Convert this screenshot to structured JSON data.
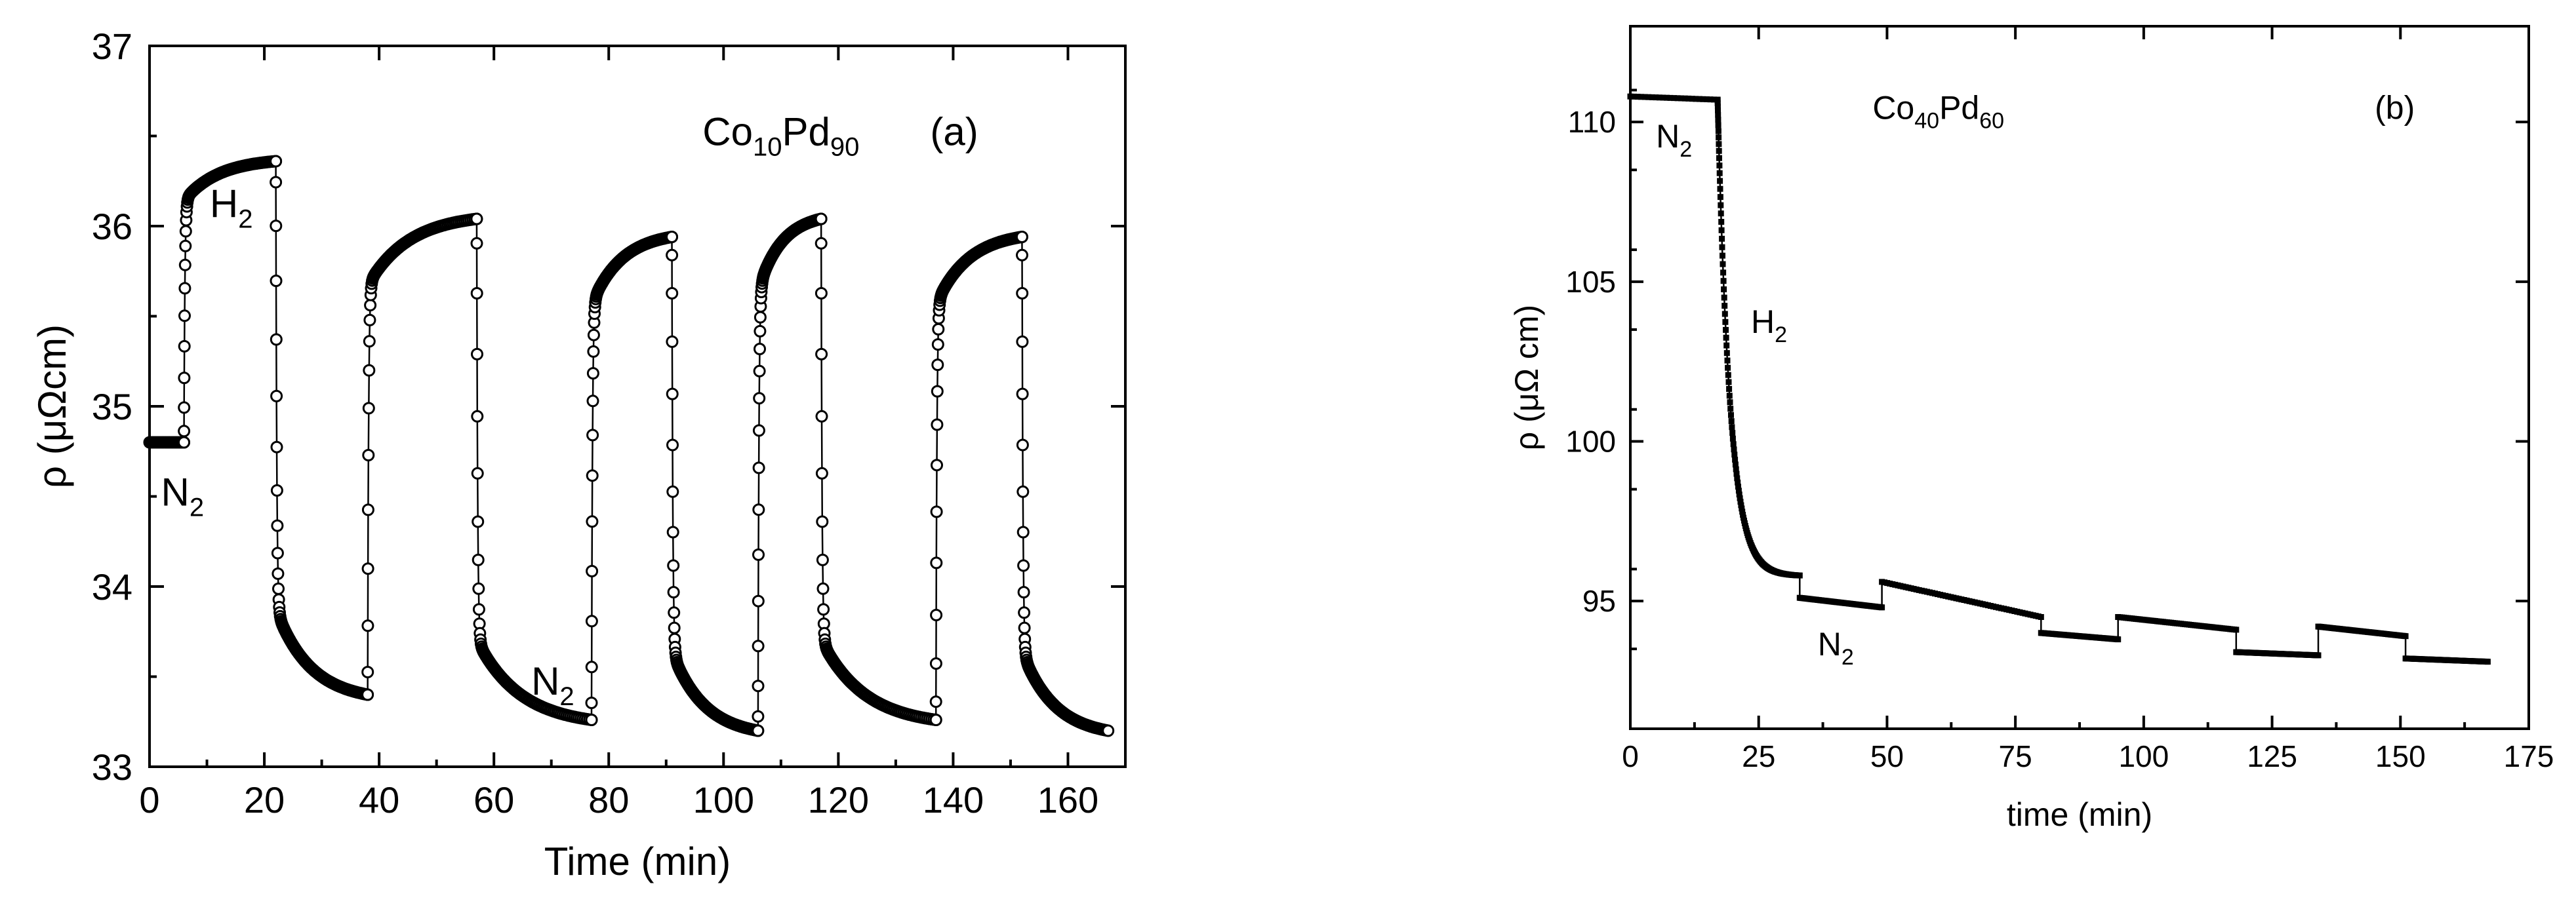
{
  "chart_data": [
    {
      "panel": "a",
      "type": "line",
      "marker": "open-circle",
      "xlabel": "Time (min)",
      "ylabel": "ρ (μΩcm)",
      "xlim": [
        0,
        170
      ],
      "ylim": [
        33,
        37
      ],
      "xticks": [
        "0",
        "20",
        "40",
        "60",
        "80",
        "100",
        "120",
        "140",
        "160"
      ],
      "yticks": [
        "33",
        "34",
        "35",
        "36",
        "37"
      ],
      "panel_label": "(a)",
      "sample": {
        "base": "Co",
        "sub1": "10",
        "mid": "Pd",
        "sub2": "90"
      },
      "annotations": [
        {
          "text": "N",
          "sub": "2",
          "x": 2,
          "y": 34.45
        },
        {
          "text": "H",
          "sub": "2",
          "x": 10.5,
          "y": 36.05
        },
        {
          "text": "N",
          "sub": "2",
          "x": 66.5,
          "y": 33.4
        }
      ],
      "series": [
        {
          "name": "Co10Pd90",
          "segments": [
            {
              "gas": "N2",
              "t0": 0,
              "t1": 6,
              "v0": 34.8,
              "vend": 34.8,
              "mode": "flat"
            },
            {
              "gas": "H2",
              "t0": 6,
              "t1": 22,
              "v0": 34.8,
              "vend": 36.36,
              "mode": "rise"
            },
            {
              "gas": "N2",
              "t0": 22,
              "t1": 38,
              "v0": 36.36,
              "vend": 33.4,
              "mode": "fall"
            },
            {
              "gas": "H2",
              "t0": 38,
              "t1": 57,
              "v0": 33.4,
              "vend": 36.04,
              "mode": "rise"
            },
            {
              "gas": "N2",
              "t0": 57,
              "t1": 77,
              "v0": 36.04,
              "vend": 33.26,
              "mode": "fall"
            },
            {
              "gas": "H2",
              "t0": 77,
              "t1": 91,
              "v0": 33.26,
              "vend": 35.94,
              "mode": "rise"
            },
            {
              "gas": "N2",
              "t0": 91,
              "t1": 106,
              "v0": 35.94,
              "vend": 33.2,
              "mode": "fall"
            },
            {
              "gas": "H2",
              "t0": 106,
              "t1": 117,
              "v0": 33.2,
              "vend": 36.04,
              "mode": "rise"
            },
            {
              "gas": "N2",
              "t0": 117,
              "t1": 137,
              "v0": 36.04,
              "vend": 33.26,
              "mode": "fall"
            },
            {
              "gas": "H2",
              "t0": 137,
              "t1": 152,
              "v0": 33.26,
              "vend": 35.94,
              "mode": "rise"
            },
            {
              "gas": "N2",
              "t0": 152,
              "t1": 167,
              "v0": 35.94,
              "vend": 33.2,
              "mode": "fall"
            }
          ]
        }
      ]
    },
    {
      "panel": "b",
      "type": "line",
      "marker": "filled-square",
      "xlabel": "time (min)",
      "ylabel": "ρ (μΩ cm)",
      "xlim": [
        0,
        175
      ],
      "ylim": [
        91,
        113
      ],
      "xticks": [
        "0",
        "25",
        "50",
        "75",
        "100",
        "125",
        "150",
        "175"
      ],
      "yticks": [
        "95",
        "100",
        "105",
        "110"
      ],
      "panel_label": "(b)",
      "sample": {
        "base": "Co",
        "sub1": "40",
        "mid": "Pd",
        "sub2": "60"
      },
      "annotations": [
        {
          "text": "N",
          "sub": "2",
          "x": 5,
          "y": 109.2
        },
        {
          "text": "H",
          "sub": "2",
          "x": 23.5,
          "y": 103.4
        },
        {
          "text": "N",
          "sub": "2",
          "x": 36.5,
          "y": 93.3
        }
      ],
      "series": [
        {
          "name": "Co40Pd60",
          "segments": [
            {
              "gas": "N2",
              "t0": 0,
              "t1": 17,
              "v0": 110.8,
              "vend": 110.7,
              "mode": "flat"
            },
            {
              "gas": "H2",
              "t0": 17,
              "t1": 33,
              "v0": 110.7,
              "vend": 95.8,
              "mode": "drop"
            },
            {
              "gas": "N2",
              "t0": 33,
              "t1": 49,
              "v0": 95.1,
              "vend": 94.8,
              "mode": "linear"
            },
            {
              "gas": "H2",
              "t0": 49,
              "t1": 80,
              "v0": 95.6,
              "vend": 94.5,
              "mode": "linear"
            },
            {
              "gas": "N2",
              "t0": 80,
              "t1": 95,
              "v0": 94.0,
              "vend": 93.8,
              "mode": "linear"
            },
            {
              "gas": "H2",
              "t0": 95,
              "t1": 118,
              "v0": 94.5,
              "vend": 94.1,
              "mode": "linear"
            },
            {
              "gas": "N2",
              "t0": 118,
              "t1": 134,
              "v0": 93.4,
              "vend": 93.3,
              "mode": "linear"
            },
            {
              "gas": "H2",
              "t0": 134,
              "t1": 151,
              "v0": 94.2,
              "vend": 93.9,
              "mode": "linear"
            },
            {
              "gas": "N2",
              "t0": 151,
              "t1": 167,
              "v0": 93.2,
              "vend": 93.1,
              "mode": "linear"
            }
          ]
        }
      ]
    }
  ]
}
